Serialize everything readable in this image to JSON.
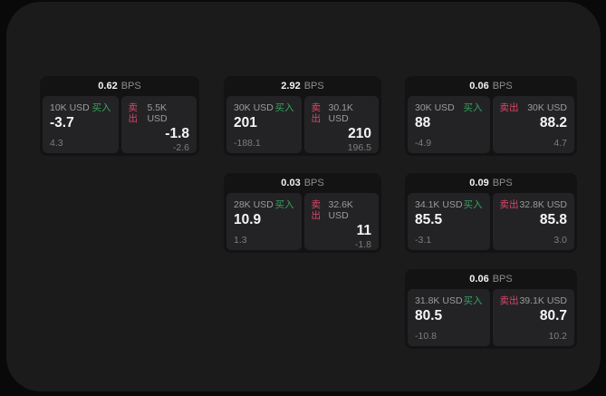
{
  "page": {
    "bps_suffix": "BPS",
    "buy_label": "买入",
    "sell_label": "卖出"
  },
  "colors": {
    "outer_background": "#090909",
    "panel_background": "#1b1b1c",
    "card_background": "#131314",
    "tile_background": "#232325",
    "buy_green": "#36a35f",
    "sell_red": "#d8486a",
    "text_primary": "#f5f5f5",
    "text_secondary": "#9b9b9b",
    "text_muted": "#7d7d7d"
  },
  "cards": [
    {
      "bps": "0.62",
      "buy": {
        "size": "10K USD",
        "price": "-3.7",
        "change": "4.3"
      },
      "sell": {
        "size": "5.5K USD",
        "price": "-1.8",
        "change": "-2.6"
      }
    },
    {
      "bps": "2.92",
      "buy": {
        "size": "30K USD",
        "price": "201",
        "change": "-188.1"
      },
      "sell": {
        "size": "30.1K USD",
        "price": "210",
        "change": "196.5"
      }
    },
    {
      "bps": "0.06",
      "buy": {
        "size": "30K USD",
        "price": "88",
        "change": "-4.9"
      },
      "sell": {
        "size": "30K USD",
        "price": "88.2",
        "change": "4.7"
      }
    },
    {
      "bps": "0.03",
      "buy": {
        "size": "28K USD",
        "price": "10.9",
        "change": "1.3"
      },
      "sell": {
        "size": "32.6K USD",
        "price": "11",
        "change": "-1.8"
      }
    },
    {
      "bps": "0.09",
      "buy": {
        "size": "34.1K USD",
        "price": "85.5",
        "change": "-3.1"
      },
      "sell": {
        "size": "32.8K USD",
        "price": "85.8",
        "change": "3.0"
      }
    },
    {
      "bps": "0.06",
      "buy": {
        "size": "31.8K USD",
        "price": "80.5",
        "change": "-10.8"
      },
      "sell": {
        "size": "39.1K USD",
        "price": "80.7",
        "change": "10.2"
      }
    }
  ]
}
